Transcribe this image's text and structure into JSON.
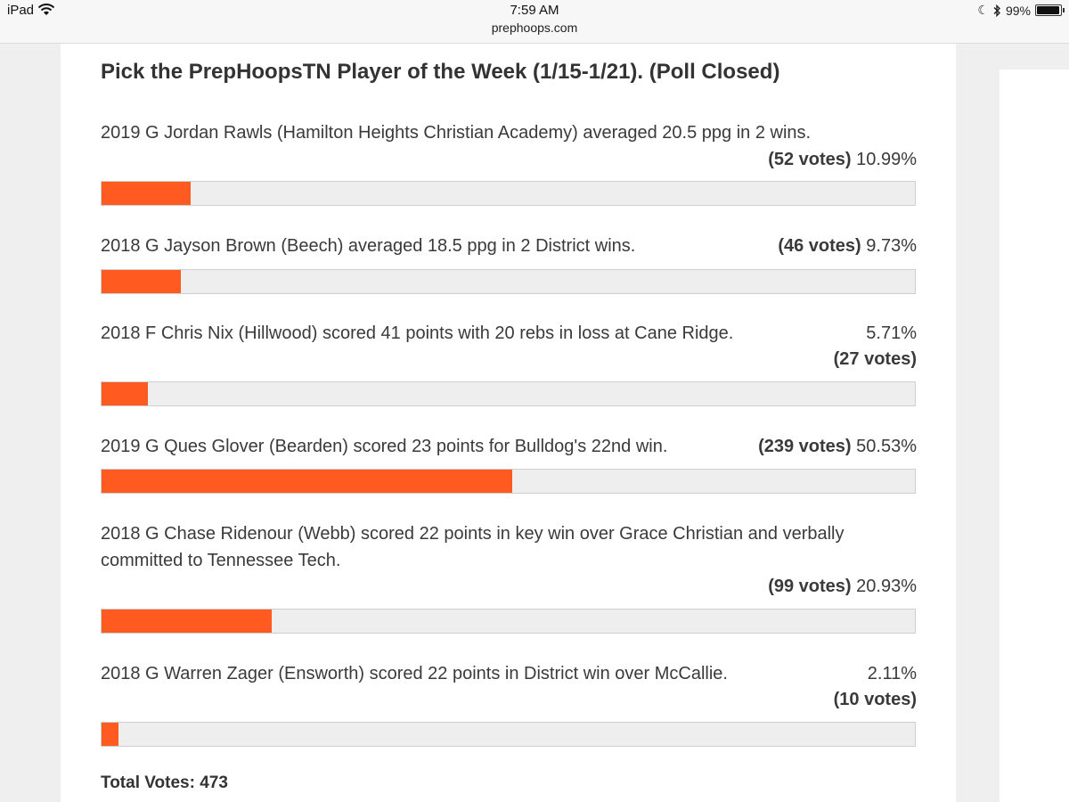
{
  "status_bar": {
    "device": "iPad",
    "time": "7:59 AM",
    "url": "prephoops.com",
    "battery": "99%"
  },
  "poll": {
    "title": "Pick the PrepHoopsTN Player of the Week (1/15-1/21). (Poll Closed)",
    "bar_color": "#ff5a1f",
    "options": [
      {
        "text": "2019 G Jordan Rawls (Hamilton Heights Christian Academy) averaged 20.5 ppg in 2 wins.",
        "votes": "(52 votes)",
        "percent": "10.99%",
        "fraction": 0.1099
      },
      {
        "text": "2018 G Jayson Brown (Beech) averaged 18.5 ppg in 2 District wins.",
        "votes": "(46 votes)",
        "percent": "9.73%",
        "fraction": 0.0973
      },
      {
        "text": "2018 F Chris Nix (Hillwood) scored 41 points with 20 rebs in loss at Cane Ridge.",
        "votes": "(27 votes)",
        "percent": "5.71%",
        "fraction": 0.0571
      },
      {
        "text": "2019 G Ques Glover (Bearden) scored 23 points for Bulldog's 22nd win.",
        "votes": "(239 votes)",
        "percent": "50.53%",
        "fraction": 0.5053
      },
      {
        "text_line1": "2018 G Chase Ridenour (Webb) scored 22 points in key win over Grace Christian and verbally",
        "text_line2": "committed to Tennessee Tech.",
        "votes": "(99 votes)",
        "percent": "20.93%",
        "fraction": 0.2093
      },
      {
        "text": "2018 G Warren Zager (Ensworth) scored 22 points in District win over McCallie.",
        "votes": "(10 votes)",
        "percent": "2.11%",
        "fraction": 0.0211
      }
    ],
    "total_votes": "Total Votes: 473"
  }
}
